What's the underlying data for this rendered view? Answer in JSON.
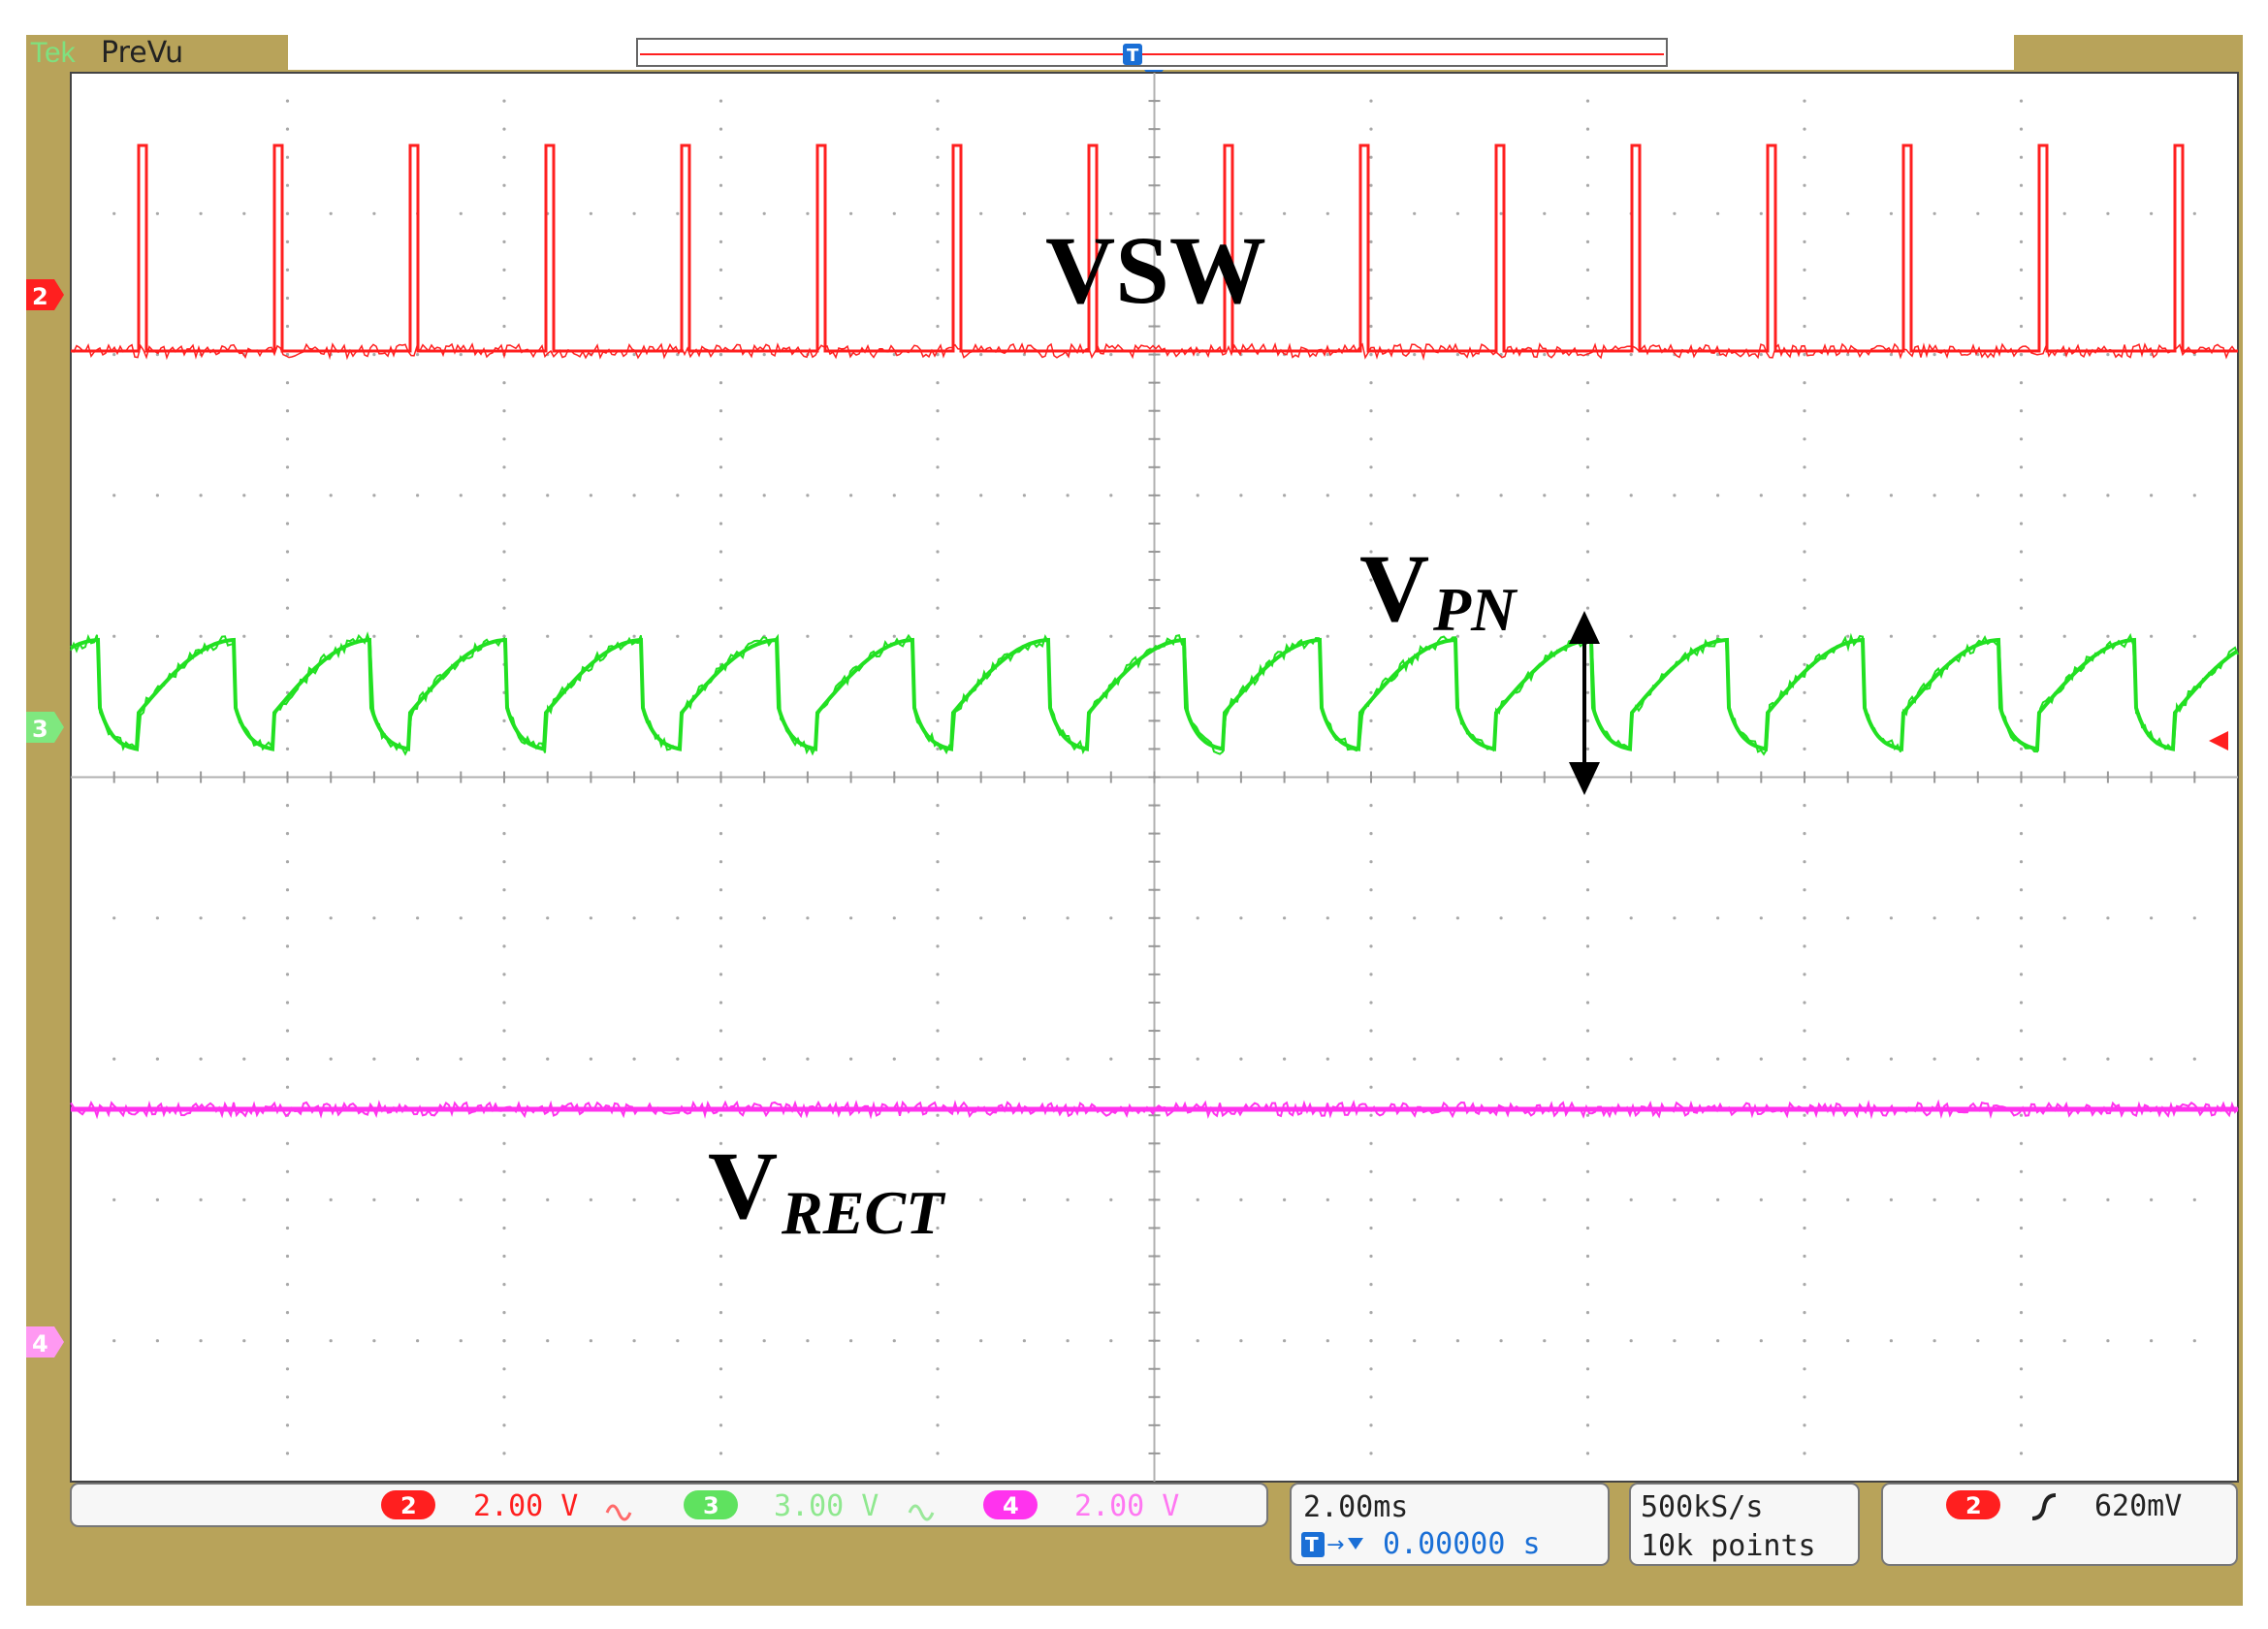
{
  "colors": {
    "bezel": "#b8a35a",
    "bezel_dark": "#8f7e3f",
    "screen": "#ffffff",
    "grid": "#9a9a9a",
    "ch2": "#ff1f1f",
    "ch3": "#22e022",
    "ch4": "#ff33ee",
    "trigger_blue": "#1a6fd6",
    "text_dark": "#222222"
  },
  "header": {
    "brand": "Tek",
    "mode": "PreVu"
  },
  "trigger_marker": {
    "label": "T"
  },
  "channel_markers": {
    "ch2": "2",
    "ch3": "3",
    "ch4": "4"
  },
  "annotations": {
    "vsw": "VSW",
    "vpn_main": "V",
    "vpn_sub": "PN",
    "vrect_main": "V",
    "vrect_sub": "RECT"
  },
  "status": {
    "ch2": {
      "num": "2",
      "scale": "2.00 V",
      "coupling_icon": "ac-coupling-icon"
    },
    "ch3": {
      "num": "3",
      "scale": "3.00 V",
      "coupling_icon": "ac-coupling-icon"
    },
    "ch4": {
      "num": "4",
      "scale": "2.00 V"
    },
    "timebase": "2.00ms",
    "position": "0.00000 s",
    "sample_rate": "500kS/s",
    "record_length": "10k points",
    "trigger_source": "2",
    "trigger_slope_icon": "rising-edge-icon",
    "trigger_level": "620mV"
  }
}
